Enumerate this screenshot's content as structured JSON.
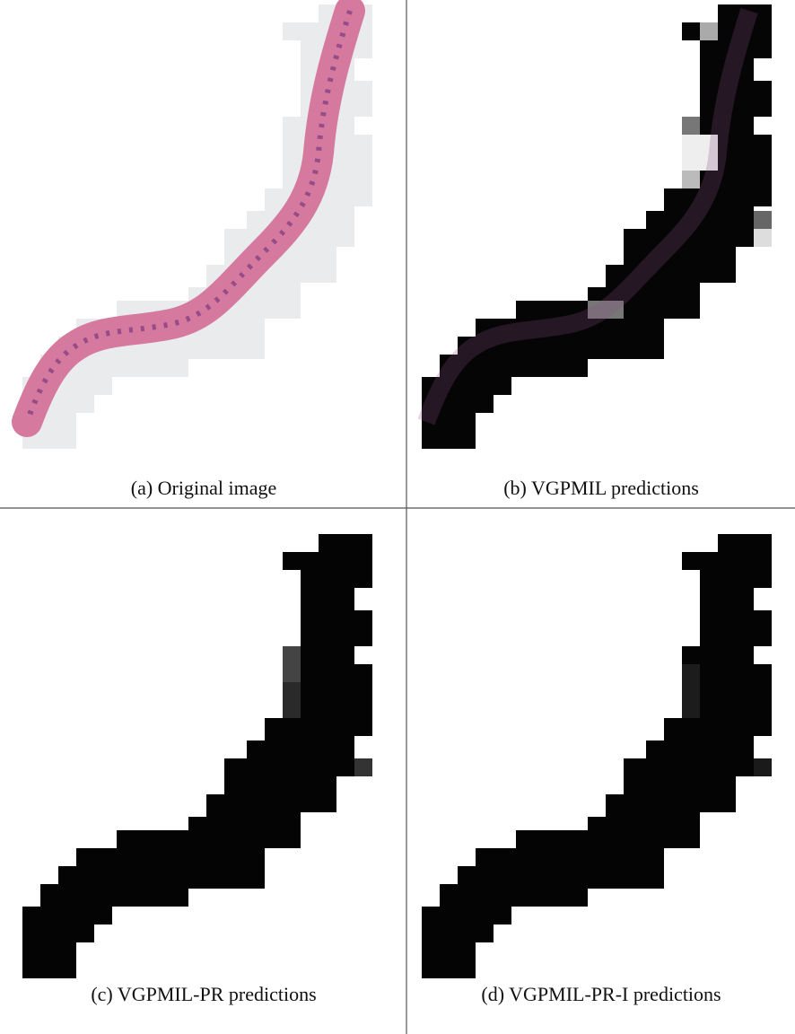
{
  "panels": [
    {
      "caption": "(a) Original image"
    },
    {
      "caption": "(b) VGPMIL predictions"
    },
    {
      "caption": "(c) VGPMIL-PR predictions"
    },
    {
      "caption": "(d) VGPMIL-PR-I predictions"
    }
  ]
}
